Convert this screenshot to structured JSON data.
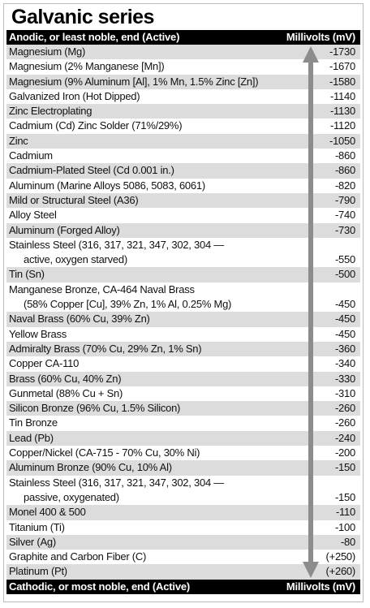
{
  "title": "Galvanic series",
  "header": {
    "left": "Anodic, or least noble, end (Active)",
    "right": "Millivolts (mV)"
  },
  "footer": {
    "left": "Cathodic, or most noble, end (Active)",
    "right": "Millivolts (mV)"
  },
  "rows": [
    {
      "lines": [
        "Magnesium (Mg)"
      ],
      "value": "-1730"
    },
    {
      "lines": [
        "Magnesium (2% Manganese [Mn])"
      ],
      "value": "-1670"
    },
    {
      "lines": [
        "Magnesium (9% Aluminum [Al], 1% Mn, 1.5% Zinc [Zn])"
      ],
      "value": "-1580"
    },
    {
      "lines": [
        "Galvanized Iron (Hot Dipped)"
      ],
      "value": "-1140"
    },
    {
      "lines": [
        "Zinc Electroplating"
      ],
      "value": "-1130"
    },
    {
      "lines": [
        "Cadmium (Cd) Zinc Solder (71%/29%)"
      ],
      "value": "-1120"
    },
    {
      "lines": [
        "Zinc"
      ],
      "value": "-1050"
    },
    {
      "lines": [
        "Cadmium"
      ],
      "value": "-860"
    },
    {
      "lines": [
        "Cadmium-Plated Steel (Cd 0.001 in.)"
      ],
      "value": "-860"
    },
    {
      "lines": [
        "Aluminum (Marine Alloys 5086, 5083, 6061)"
      ],
      "value": "-820"
    },
    {
      "lines": [
        "Mild or Structural Steel (A36)"
      ],
      "value": "-790"
    },
    {
      "lines": [
        "Alloy Steel"
      ],
      "value": "-740"
    },
    {
      "lines": [
        "Aluminum (Forged Alloy)"
      ],
      "value": "-730"
    },
    {
      "lines": [
        "Stainless Steel (316, 317, 321, 347, 302, 304 —",
        "active, oxygen starved)"
      ],
      "value": "-550"
    },
    {
      "lines": [
        "Tin (Sn)"
      ],
      "value": "-500"
    },
    {
      "lines": [
        "Manganese Bronze, CA-464 Naval Brass",
        "(58% Copper [Cu], 39% Zn, 1% Al, 0.25% Mg)"
      ],
      "value": "-450"
    },
    {
      "lines": [
        "Naval Brass (60% Cu, 39% Zn)"
      ],
      "value": "-450"
    },
    {
      "lines": [
        "Yellow Brass"
      ],
      "value": "-450"
    },
    {
      "lines": [
        "Admiralty Brass (70% Cu, 29% Zn, 1% Sn)"
      ],
      "value": "-360"
    },
    {
      "lines": [
        "Copper CA-110"
      ],
      "value": "-340"
    },
    {
      "lines": [
        "Brass (60% Cu, 40% Zn)"
      ],
      "value": "-330"
    },
    {
      "lines": [
        "Gunmetal (88% Cu + Sn)"
      ],
      "value": "-310"
    },
    {
      "lines": [
        "Silicon Bronze (96% Cu, 1.5% Silicon)"
      ],
      "value": "-260"
    },
    {
      "lines": [
        "Tin Bronze"
      ],
      "value": "-260"
    },
    {
      "lines": [
        "Lead (Pb)"
      ],
      "value": "-240"
    },
    {
      "lines": [
        "Copper/Nickel (CA-715 - 70% Cu, 30% Ni)"
      ],
      "value": "-200"
    },
    {
      "lines": [
        "Aluminum Bronze (90% Cu, 10% Al)"
      ],
      "value": "-150"
    },
    {
      "lines": [
        "Stainless Steel (316, 317, 321, 347, 302, 304 —",
        "passive, oxygenated)"
      ],
      "value": "-150"
    },
    {
      "lines": [
        "Monel 400 & 500"
      ],
      "value": "-110"
    },
    {
      "lines": [
        "Titanium (Ti)"
      ],
      "value": "-100"
    },
    {
      "lines": [
        "Silver (Ag)"
      ],
      "value": "-80"
    },
    {
      "lines": [
        "Graphite  and Carbon Fiber (C)"
      ],
      "value": "(+250)"
    },
    {
      "lines": [
        "Platinum (Pt)"
      ],
      "value": "(+260)"
    }
  ]
}
